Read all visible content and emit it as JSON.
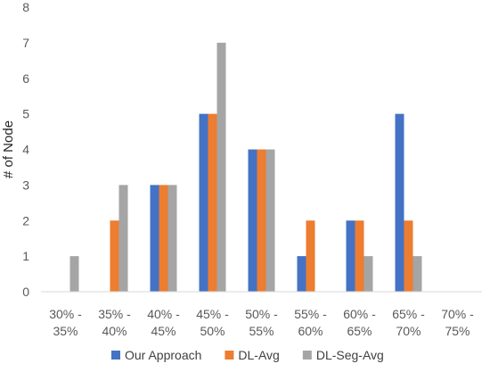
{
  "chart_data": {
    "type": "bar",
    "title": "",
    "xlabel": "",
    "ylabel": "# of Node",
    "ylim": [
      0,
      8
    ],
    "yticks": [
      "0",
      "1",
      "2",
      "3",
      "4",
      "5",
      "6",
      "7",
      "8"
    ],
    "categories": [
      [
        "30% -",
        "35%"
      ],
      [
        "35% -",
        "40%"
      ],
      [
        "40% -",
        "45%"
      ],
      [
        "45% -",
        "50%"
      ],
      [
        "50% -",
        "55%"
      ],
      [
        "55% -",
        "60%"
      ],
      [
        "60% -",
        "65%"
      ],
      [
        "65% -",
        "70%"
      ],
      [
        "70% -",
        "75%"
      ]
    ],
    "series": [
      {
        "name": "Our Approach",
        "color": "#4472C4",
        "values": [
          0,
          0,
          3,
          5,
          4,
          1,
          2,
          5,
          0
        ]
      },
      {
        "name": "DL-Avg",
        "color": "#ED7D31",
        "values": [
          0,
          2,
          3,
          5,
          4,
          2,
          2,
          2,
          0
        ]
      },
      {
        "name": "DL-Seg-Avg",
        "color": "#A5A5A5",
        "values": [
          1,
          3,
          3,
          7,
          4,
          0,
          1,
          1,
          0
        ]
      }
    ],
    "grid": false,
    "legend": "bottom"
  }
}
